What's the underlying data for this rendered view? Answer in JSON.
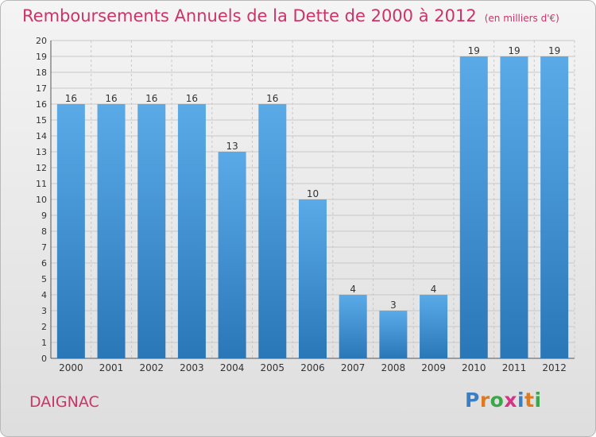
{
  "header": {
    "title": "Remboursements Annuels de la Dette de 2000 à 2012",
    "subtitle": "(en milliers d'€)"
  },
  "commune": "DAIGNAC",
  "logo": {
    "text": "Proxiti",
    "colors": [
      "#3a7fc4",
      "#e07a1f",
      "#3aa84a",
      "#d63384",
      "#3a7fc4",
      "#e07a1f",
      "#3aa84a"
    ]
  },
  "colors": {
    "bar_light": "#5aaae8",
    "bar_dark": "#2a77b8",
    "title": "#cc3366"
  },
  "chart_data": {
    "type": "bar",
    "categories": [
      "2000",
      "2001",
      "2002",
      "2003",
      "2004",
      "2005",
      "2006",
      "2007",
      "2008",
      "2009",
      "2010",
      "2011",
      "2012"
    ],
    "values": [
      16,
      16,
      16,
      16,
      13,
      16,
      10,
      4,
      3,
      4,
      19,
      19,
      19
    ],
    "data_labels": [
      "16",
      "16",
      "16",
      "16",
      "13",
      "16",
      "10",
      "4",
      "3",
      "4",
      "19",
      "19",
      "19"
    ],
    "y_ticks": [
      "0",
      "1",
      "2",
      "3",
      "4",
      "5",
      "6",
      "7",
      "8",
      "9",
      "10",
      "11",
      "12",
      "13",
      "14",
      "15",
      "16",
      "17",
      "18",
      "19",
      "20"
    ],
    "ylim": [
      0,
      20
    ],
    "grid": true,
    "legend": "none"
  }
}
